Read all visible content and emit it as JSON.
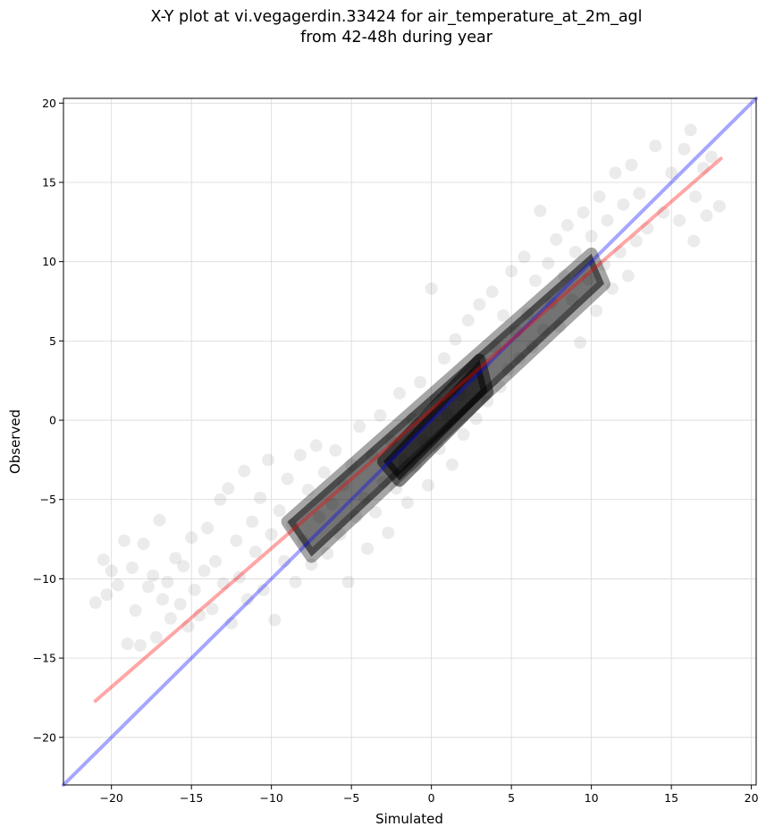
{
  "chart_data": {
    "type": "scatter",
    "title_line1": "X-Y plot at vi.vegagerdin.33424 for air_temperature_at_2m_agl",
    "title_line2": "from 42-48h during year",
    "xlabel": "Simulated",
    "ylabel": "Observed",
    "xlim": [
      -23,
      20.3
    ],
    "ylim": [
      -23,
      20.3
    ],
    "xticks": [
      -20,
      -15,
      -10,
      -5,
      0,
      5,
      10,
      15,
      20
    ],
    "yticks": [
      -20,
      -15,
      -10,
      -5,
      0,
      5,
      10,
      15,
      20
    ],
    "grid": true,
    "point_color": "#000000",
    "point_alpha": 0.08,
    "series": [
      {
        "type": "line",
        "color": "#0000ff",
        "alpha": 0.35,
        "x": [
          -23,
          20.3
        ],
        "y": [
          -23,
          20.3
        ]
      },
      {
        "type": "line",
        "color": "#ff0000",
        "alpha": 0.35,
        "x": [
          -21,
          18.1
        ],
        "y": [
          -17.7,
          16.5
        ]
      }
    ],
    "points": [
      [
        -21,
        -11.5
      ],
      [
        -20.5,
        -8.8
      ],
      [
        -20.3,
        -11
      ],
      [
        -20,
        -9.5
      ],
      [
        -19.6,
        -10.4
      ],
      [
        -19.2,
        -7.6
      ],
      [
        -19,
        -14.1
      ],
      [
        -18.7,
        -9.3
      ],
      [
        -18.5,
        -12
      ],
      [
        -18.2,
        -14.2
      ],
      [
        -18,
        -7.8
      ],
      [
        -17.7,
        -10.5
      ],
      [
        -17.4,
        -9.8
      ],
      [
        -17.2,
        -13.7
      ],
      [
        -17,
        -6.3
      ],
      [
        -16.8,
        -11.3
      ],
      [
        -16.5,
        -10.2
      ],
      [
        -16.3,
        -12.5
      ],
      [
        -16,
        -8.7
      ],
      [
        -15.7,
        -11.6
      ],
      [
        -15.5,
        -9.2
      ],
      [
        -15.2,
        -13
      ],
      [
        -15,
        -7.4
      ],
      [
        -14.8,
        -10.7
      ],
      [
        -14.5,
        -12.3
      ],
      [
        -14.2,
        -9.5
      ],
      [
        -14,
        -6.8
      ],
      [
        -13.7,
        -11.9
      ],
      [
        -13.5,
        -8.9
      ],
      [
        -13.2,
        -5
      ],
      [
        -13,
        -10.3
      ],
      [
        -12.7,
        -4.3
      ],
      [
        -12.5,
        -12.8
      ],
      [
        -12.2,
        -7.6
      ],
      [
        -12,
        -9.9
      ],
      [
        -11.7,
        -3.2
      ],
      [
        -11.5,
        -11.3
      ],
      [
        -11.2,
        -6.4
      ],
      [
        -11,
        -8.3
      ],
      [
        -10.7,
        -4.9
      ],
      [
        -10.5,
        -10.7
      ],
      [
        -10.2,
        -2.5
      ],
      [
        -10,
        -7.2
      ],
      [
        -9.8,
        -12.6
      ],
      [
        -9.5,
        -5.7
      ],
      [
        -9.2,
        -8.9
      ],
      [
        -9,
        -3.7
      ],
      [
        -8.7,
        -6.6
      ],
      [
        -8.5,
        -10.2
      ],
      [
        -8.2,
        -2.2
      ],
      [
        -8,
        -7.6
      ],
      [
        -7.7,
        -4.4
      ],
      [
        -7.5,
        -9.1
      ],
      [
        -7.2,
        -1.6
      ],
      [
        -7,
        -6.1
      ],
      [
        -6.7,
        -3.3
      ],
      [
        -6.5,
        -8.4
      ],
      [
        -6.2,
        -5.3
      ],
      [
        -6,
        -1.9
      ],
      [
        -5.7,
        -7.2
      ],
      [
        -5.5,
        -4.1
      ],
      [
        -5.2,
        -10.2
      ],
      [
        -5,
        -2.8
      ],
      [
        -4.7,
        -6.1
      ],
      [
        -4.5,
        -0.4
      ],
      [
        -4.2,
        -4.9
      ],
      [
        -4,
        -8.1
      ],
      [
        -3.7,
        -2.2
      ],
      [
        -3.5,
        -5.8
      ],
      [
        -3.2,
        0.3
      ],
      [
        -3,
        -3.9
      ],
      [
        -2.7,
        -7.1
      ],
      [
        -2.5,
        -1.3
      ],
      [
        -2.2,
        -4.3
      ],
      [
        -2,
        1.7
      ],
      [
        -1.7,
        -2.6
      ],
      [
        -1.5,
        -5.2
      ],
      [
        -1.2,
        0.1
      ],
      [
        -1,
        -2.9
      ],
      [
        -0.7,
        2.4
      ],
      [
        -0.5,
        -1.3
      ],
      [
        -0.2,
        -4.1
      ],
      [
        0,
        8.3
      ],
      [
        0.3,
        1.3
      ],
      [
        0.5,
        -1.8
      ],
      [
        0.8,
        3.9
      ],
      [
        1,
        0.4
      ],
      [
        1.3,
        -2.8
      ],
      [
        1.5,
        5.1
      ],
      [
        1.8,
        1.6
      ],
      [
        2,
        -0.9
      ],
      [
        2.3,
        6.3
      ],
      [
        2.5,
        2.8
      ],
      [
        2.8,
        0.1
      ],
      [
        3,
        7.3
      ],
      [
        3.3,
        3.6
      ],
      [
        3.5,
        1.2
      ],
      [
        3.8,
        8.1
      ],
      [
        4,
        4.6
      ],
      [
        4.3,
        2.1
      ],
      [
        4.5,
        6.6
      ],
      [
        4.8,
        3.2
      ],
      [
        5,
        9.4
      ],
      [
        5.3,
        5.6
      ],
      [
        5.5,
        3.9
      ],
      [
        5.8,
        10.3
      ],
      [
        6,
        6.7
      ],
      [
        6.3,
        4.6
      ],
      [
        6.5,
        8.8
      ],
      [
        6.8,
        13.2
      ],
      [
        7,
        5.7
      ],
      [
        7.3,
        9.9
      ],
      [
        7.5,
        7.4
      ],
      [
        7.8,
        11.4
      ],
      [
        8,
        5.9
      ],
      [
        8.3,
        9.1
      ],
      [
        8.5,
        12.3
      ],
      [
        8.8,
        7.6
      ],
      [
        9,
        10.6
      ],
      [
        9.3,
        4.9
      ],
      [
        9.5,
        13.1
      ],
      [
        9.8,
        8.9
      ],
      [
        10,
        11.6
      ],
      [
        10.3,
        6.9
      ],
      [
        10.5,
        14.1
      ],
      [
        10.8,
        9.8
      ],
      [
        11,
        12.6
      ],
      [
        11.3,
        8.3
      ],
      [
        11.5,
        15.6
      ],
      [
        11.8,
        10.6
      ],
      [
        12,
        13.6
      ],
      [
        12.3,
        9.1
      ],
      [
        12.5,
        16.1
      ],
      [
        12.8,
        11.3
      ],
      [
        13,
        14.3
      ],
      [
        13.5,
        12.1
      ],
      [
        14,
        17.3
      ],
      [
        14.5,
        13.1
      ],
      [
        15,
        15.6
      ],
      [
        15.5,
        12.6
      ],
      [
        15.8,
        17.1
      ],
      [
        16.2,
        18.3
      ],
      [
        16.5,
        14.1
      ],
      [
        17,
        15.9
      ],
      [
        17.5,
        16.6
      ],
      [
        18,
        13.5
      ],
      [
        16.4,
        11.3
      ],
      [
        17.2,
        12.9
      ]
    ]
  }
}
